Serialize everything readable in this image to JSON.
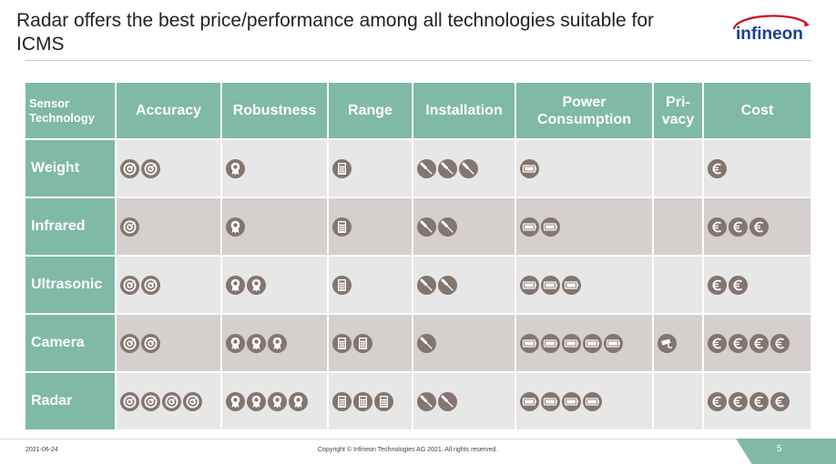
{
  "slide": {
    "title": "Radar offers the best price/performance among all technologies suitable for ICMS",
    "logo_text": "infineon"
  },
  "table": {
    "headers": [
      "Sensor Technology",
      "Accuracy",
      "Robustness",
      "Range",
      "Installation",
      "Power Consumption",
      "Pri-vacy",
      "Cost"
    ],
    "rows": [
      {
        "label": "Weight",
        "shade": "light",
        "accuracy": 2,
        "robustness": 1,
        "range": 1,
        "installation": 3,
        "power": 1,
        "privacy": 0,
        "cost": 1
      },
      {
        "label": "Infrared",
        "shade": "dark",
        "accuracy": 1,
        "robustness": 1,
        "range": 1,
        "installation": 2,
        "power": 2,
        "privacy": 0,
        "cost": 3
      },
      {
        "label": "Ultrasonic",
        "shade": "light",
        "accuracy": 2,
        "robustness": 2,
        "range": 1,
        "installation": 2,
        "power": 3,
        "privacy": 0,
        "cost": 2
      },
      {
        "label": "Camera",
        "shade": "dark",
        "accuracy": 2,
        "robustness": 3,
        "range": 2,
        "installation": 1,
        "power": 5,
        "privacy": 1,
        "cost": 4
      },
      {
        "label": "Radar",
        "shade": "light",
        "accuracy": 4,
        "robustness": 4,
        "range": 3,
        "installation": 2,
        "power": 4,
        "privacy": 0,
        "cost": 4
      }
    ],
    "icon_names": {
      "accuracy": "target-icon",
      "robustness": "rosette-icon",
      "range": "calculator-icon",
      "installation": "screwdriver-icon",
      "power": "battery-icon",
      "privacy": "camera-icon",
      "cost": "euro-icon"
    },
    "colors": {
      "header_bg": "#80b9a8",
      "icon_bg": "#83756f",
      "row_light": "#e7e7e7",
      "row_dark": "#d5cfcd"
    }
  },
  "footer": {
    "date": "2021-06-24",
    "copyright": "Copyright © Infineon Technologies AG 2021. All rights reserved.",
    "page": "5"
  }
}
